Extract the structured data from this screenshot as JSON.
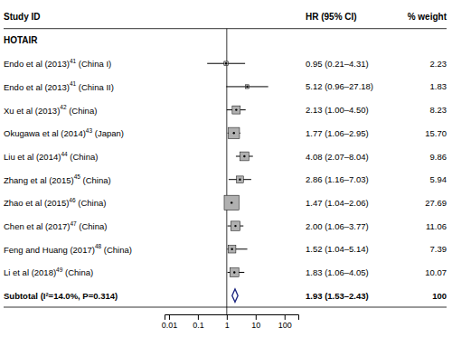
{
  "chart_data": {
    "type": "forest",
    "columns": [
      "Study ID",
      "HR (95% CI)",
      "% weight"
    ],
    "group_label": "HOTAIR",
    "categories": [
      "Endo et al (2013)",
      "Endo et al (2013)",
      "Xu et al (2013)",
      "Okugawa et al (2014)",
      "Liu et al (2014)",
      "Zhang et al (2015)",
      "Zhao et al (2015)",
      "Chen et al (2017)",
      "Feng and Huang (2017)",
      "Li et al (2018)"
    ],
    "superscripts": [
      "41",
      "41",
      "42",
      "43",
      "44",
      "45",
      "46",
      "47",
      "48",
      "49"
    ],
    "suffixes": [
      " (China I)",
      " (China II)",
      " (China)",
      " (Japan)",
      " (China)",
      " (China)",
      " (China)",
      " (China)",
      " (China)",
      " (China)"
    ],
    "values": [
      0.95,
      5.12,
      2.13,
      1.77,
      4.08,
      2.86,
      1.47,
      2.0,
      1.52,
      1.83
    ],
    "ci_lo": [
      0.21,
      0.96,
      1.0,
      1.06,
      2.07,
      1.16,
      1.04,
      1.06,
      1.04,
      1.06
    ],
    "ci_hi": [
      4.31,
      27.18,
      4.5,
      2.95,
      8.04,
      7.03,
      2.06,
      3.77,
      5.14,
      4.05
    ],
    "value_labels": [
      "0.95 (0.21–4.31)",
      "5.12 (0.96–27.18)",
      "2.13 (1.00–4.50)",
      "1.77 (1.06–2.95)",
      "4.08 (2.07–8.04)",
      "2.86 (1.16–7.03)",
      "1.47 (1.04–2.06)",
      "2.00 (1.06–3.77)",
      "1.52 (1.04–5.14)",
      "1.83 (1.06–4.05)"
    ],
    "weights": [
      2.23,
      1.83,
      8.23,
      15.7,
      9.86,
      5.94,
      27.69,
      11.06,
      7.39,
      10.07
    ],
    "weight_labels": [
      "2.23",
      "1.83",
      "8.23",
      "15.70",
      "9.86",
      "5.94",
      "27.69",
      "11.06",
      "7.39",
      "10.07"
    ],
    "color": "#b0b0b0",
    "subtotal": {
      "label": "Subtotal (I²=14.0%, P=0.314)",
      "value": 1.93,
      "ci_lo": 1.53,
      "ci_hi": 2.43,
      "value_label": "1.93 (1.53–2.43)",
      "weight": 100,
      "color": "#1a237e"
    },
    "xlim": [
      0.007,
      300
    ],
    "xticks": [
      0.01,
      0.1,
      1,
      10,
      100
    ],
    "log": "x",
    "grid": false
  }
}
